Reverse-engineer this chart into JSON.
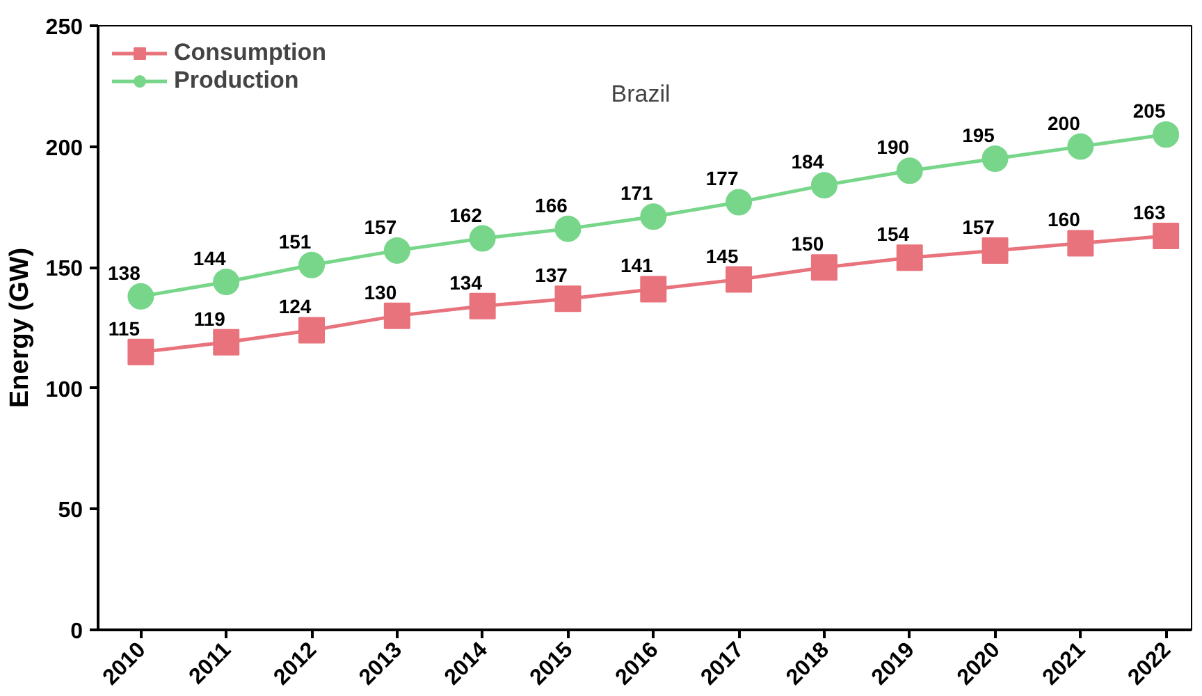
{
  "chart_data": {
    "type": "line",
    "title": "Brazil",
    "ylabel": "Energy (GW)",
    "categories": [
      "2010",
      "2011",
      "2012",
      "2013",
      "2014",
      "2015",
      "2016",
      "2017",
      "2018",
      "2019",
      "2020",
      "2021",
      "2022"
    ],
    "series": [
      {
        "name": "Consumption",
        "color": "#e8737d",
        "marker": "square",
        "values": [
          115,
          119,
          124,
          130,
          134,
          137,
          141,
          145,
          150,
          154,
          157,
          160,
          163
        ]
      },
      {
        "name": "Production",
        "color": "#78d68a",
        "marker": "circle",
        "values": [
          138,
          144,
          151,
          157,
          162,
          166,
          171,
          177,
          184,
          190,
          195,
          200,
          205
        ]
      }
    ],
    "ylim": [
      0,
      250
    ],
    "yticks": [
      0,
      50,
      100,
      150,
      200,
      250
    ],
    "data_labels": true,
    "legend": "top left",
    "grid": false
  }
}
